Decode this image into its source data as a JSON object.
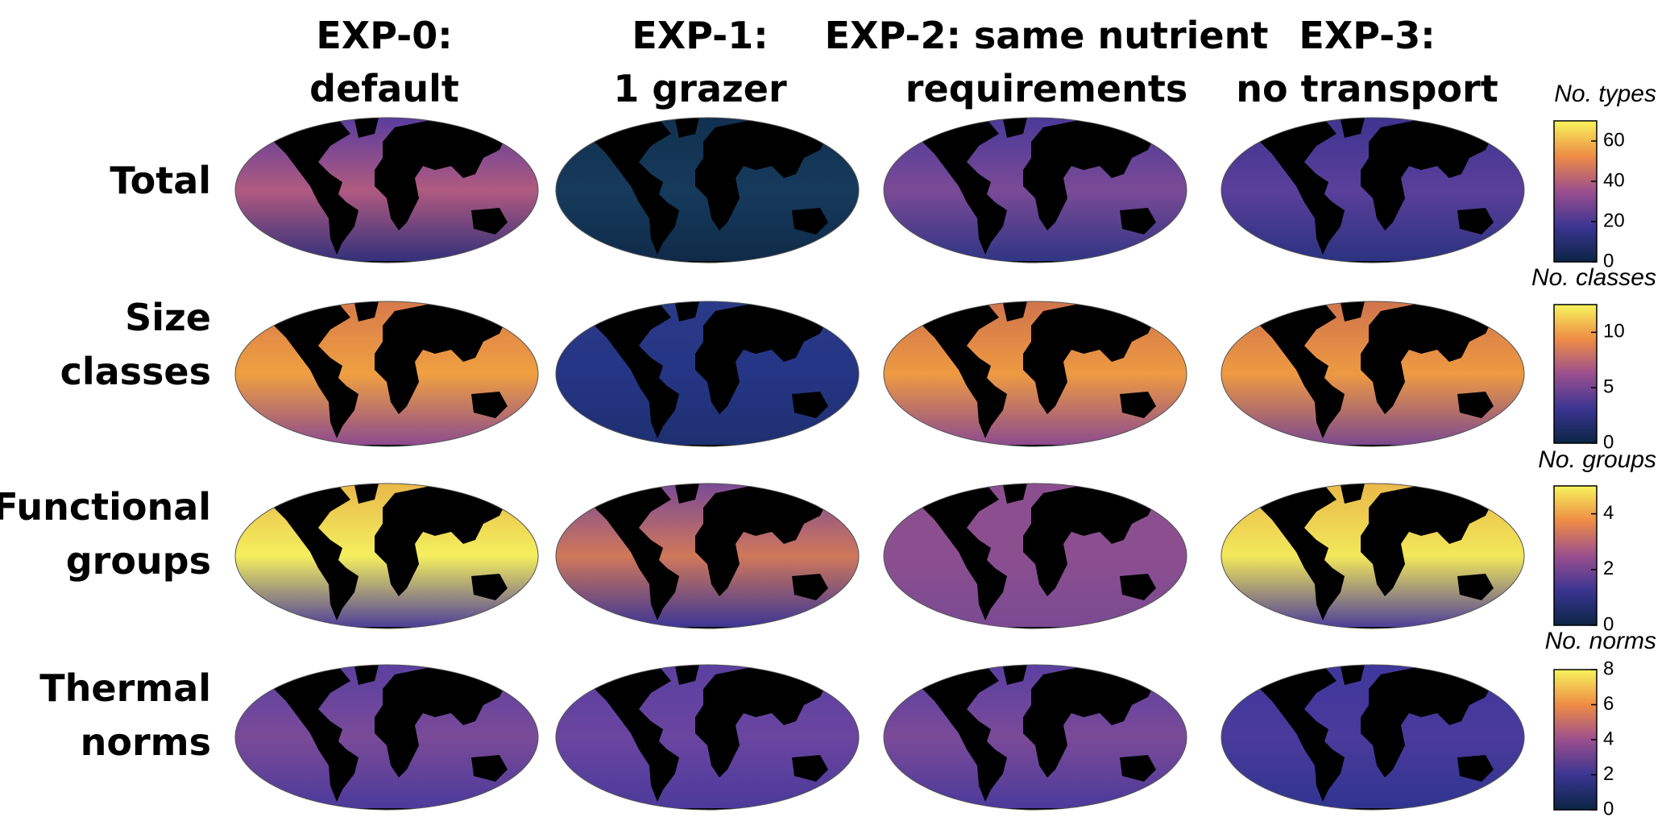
{
  "columns": [
    [
      "EXP-0:",
      "default"
    ],
    [
      "EXP-1:",
      "1 grazer"
    ],
    [
      "EXP-2: same nutrient",
      "requirements"
    ],
    [
      "EXP-3:",
      "no transport"
    ]
  ],
  "rows": [
    [
      "Total"
    ],
    [
      "Size",
      "classes"
    ],
    [
      "Functional",
      "groups"
    ],
    [
      "Thermal",
      "norms"
    ]
  ],
  "colorbars": [
    {
      "label": "No. types",
      "lim": [
        0,
        70
      ],
      "ticks": [
        0,
        20,
        40,
        60
      ]
    },
    {
      "label": "No. classes",
      "lim": [
        0,
        12.5
      ],
      "ticks": [
        0,
        5,
        10
      ]
    },
    {
      "label": "No. groups",
      "lim": [
        0,
        5
      ],
      "ticks": [
        0,
        2,
        4
      ]
    },
    {
      "label": "No. norms",
      "lim": [
        0,
        8
      ],
      "ticks": [
        0,
        2,
        4,
        6,
        8
      ]
    }
  ]
}
